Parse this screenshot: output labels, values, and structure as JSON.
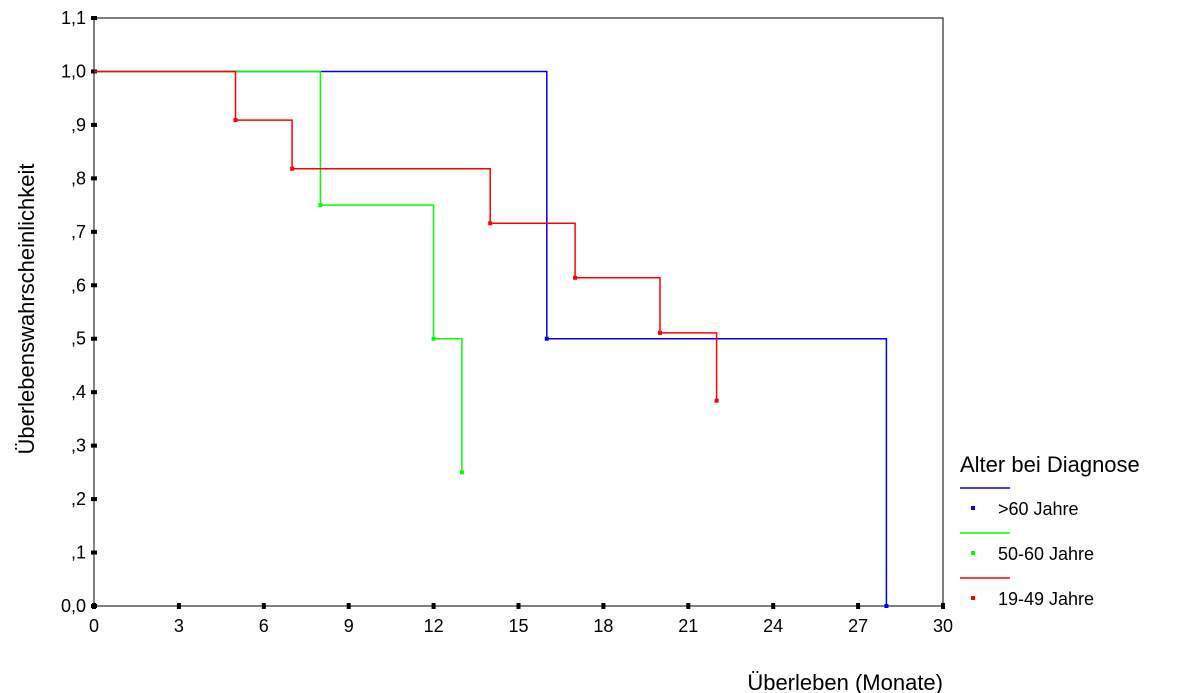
{
  "chart_data": {
    "type": "line",
    "step": true,
    "xlabel": "Überleben (Monate)",
    "ylabel": "Überlebenswahrscheinlichkeit",
    "xlim": [
      0,
      30
    ],
    "ylim": [
      0,
      1.1
    ],
    "x_ticks": [
      0,
      3,
      6,
      9,
      12,
      15,
      18,
      21,
      24,
      27,
      30
    ],
    "x_tick_labels": [
      "0",
      "3",
      "6",
      "9",
      "12",
      "15",
      "18",
      "21",
      "24",
      "27",
      "30"
    ],
    "y_ticks": [
      0,
      0.1,
      0.2,
      0.3,
      0.4,
      0.5,
      0.6,
      0.7,
      0.8,
      0.9,
      1.0,
      1.1
    ],
    "y_tick_labels": [
      "0,0",
      ",1",
      ",2",
      ",3",
      ",4",
      ",5",
      ",6",
      ",7",
      ",8",
      ",9",
      "1,0",
      "1,1"
    ],
    "grid": false,
    "legend": {
      "title": "Alter bei Diagnose",
      "position": "right"
    },
    "series": [
      {
        "name": ">60 Jahre",
        "color": "#0000ff",
        "x": [
          0,
          16,
          28
        ],
        "y": [
          1.0,
          0.5,
          0.0
        ]
      },
      {
        "name": "50-60 Jahre",
        "color": "#00ff00",
        "x": [
          0,
          8,
          12,
          13
        ],
        "y": [
          1.0,
          0.75,
          0.5,
          0.25
        ]
      },
      {
        "name": "19-49 Jahre",
        "color": "#ff0000",
        "x": [
          0,
          5,
          7,
          14,
          17,
          20,
          22
        ],
        "y": [
          1.0,
          0.909,
          0.818,
          0.716,
          0.614,
          0.511,
          0.384
        ]
      }
    ]
  }
}
